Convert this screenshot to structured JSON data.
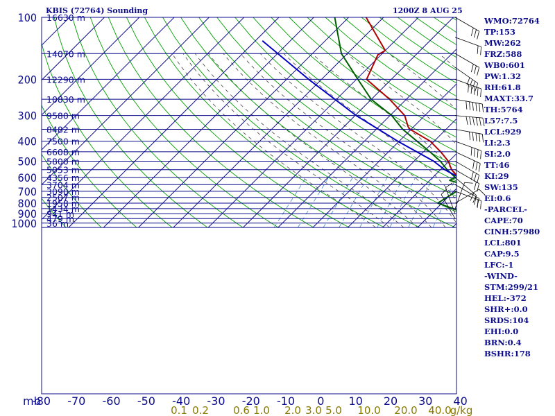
{
  "header": {
    "station": "KBIS (72764) Sounding",
    "time": "1200Z  8 AUG 25"
  },
  "indices": [
    "WMO:72764",
    "TP:153",
    "MW:262",
    "FRZ:588",
    "WB0:601",
    "PW:1.32",
    "RH:61.8",
    "MAXT:33.7",
    "TH:5764",
    "L57:7.5",
    "LCL:929",
    "LI:2.3",
    "SI:2.0",
    "TT:46",
    "KI:29",
    "SW:135",
    "EI:0.6",
    "-PARCEL-",
    "CAPE:70",
    "CINH:57980",
    "LCL:801",
    "CAP:9.5",
    "LFC:-1",
    "-WIND-",
    "STM:299/21",
    "HEL:-372",
    "SHR+:0.0",
    "SRDS:104",
    "EHI:0.0",
    "BRN:0.4",
    "BSHR:178"
  ],
  "colors": {
    "frame": "#0c0c8c",
    "temperature": "#b00000",
    "dewpoint": "#006000",
    "parcel": "#0000c0",
    "dry_adiabat": "#00a000",
    "moist_adiabat": "#404040",
    "mixing_ratio": "#3a8ad0",
    "mixing_label": "#8a7a00"
  },
  "chart_data": {
    "type": "skew-t",
    "pressure_axis_mb": [
      100,
      200,
      300,
      400,
      500,
      600,
      700,
      800,
      900,
      1000
    ],
    "pressure_range_mb": [
      100,
      1050
    ],
    "temperature_range_c": [
      -80,
      40
    ],
    "temperature_ticks": [
      "-80",
      "-70",
      "-60",
      "-50",
      "-40",
      "-30",
      "-20",
      "-10",
      "0",
      "10",
      "20",
      "30",
      "40"
    ],
    "axis_unit": "mb",
    "mixing_ratio_labels": [
      "0.1",
      "0.2",
      "0.6",
      "1.0",
      "2.0",
      "3.0",
      "5.0",
      "10.0",
      "20.0",
      "40.0"
    ],
    "mixing_unit": "g/kg",
    "height_labels": [
      {
        "p": 100,
        "label": "16630 m"
      },
      {
        "p": 150,
        "label": "14070 m"
      },
      {
        "p": 200,
        "label": "12290 m"
      },
      {
        "p": 250,
        "label": "10830 m"
      },
      {
        "p": 300,
        "label": "9580 m"
      },
      {
        "p": 350,
        "label": "8482 m"
      },
      {
        "p": 400,
        "label": "7500 m"
      },
      {
        "p": 450,
        "label": "6608 m"
      },
      {
        "p": 500,
        "label": "5800 m"
      },
      {
        "p": 550,
        "label": "5053 m"
      },
      {
        "p": 600,
        "label": "4356 m"
      },
      {
        "p": 650,
        "label": "3704 m"
      },
      {
        "p": 700,
        "label": "3090 m"
      },
      {
        "p": 750,
        "label": "2507 m"
      },
      {
        "p": 800,
        "label": "1958 m"
      },
      {
        "p": 850,
        "label": "1434 m"
      },
      {
        "p": 900,
        "label": "941 m"
      },
      {
        "p": 950,
        "label": "479 m"
      },
      {
        "p": 1000,
        "label": "36 m"
      }
    ],
    "series": [
      {
        "id": "temperature",
        "points": [
          [
            100,
            -75.0
          ],
          [
            145,
            -60.0
          ],
          [
            152,
            -60.9
          ],
          [
            200,
            -57.1
          ],
          [
            250,
            -44.8
          ],
          [
            300,
            -35.8
          ],
          [
            340,
            -31.6
          ],
          [
            350,
            -30.3
          ],
          [
            400,
            -21.1
          ],
          [
            450,
            -15.1
          ],
          [
            500,
            -10.2
          ],
          [
            550,
            -6.8
          ],
          [
            600,
            -2.7
          ],
          [
            650,
            1.5
          ],
          [
            700,
            6.0
          ],
          [
            800,
            15.3
          ],
          [
            820,
            16.8
          ],
          [
            860,
            16.3
          ],
          [
            900,
            12.9
          ],
          [
            920,
            14.1
          ],
          [
            945,
            15.5
          ]
        ]
      },
      {
        "id": "dewpoint",
        "points": [
          [
            100,
            -84.0
          ],
          [
            150,
            -71.7
          ],
          [
            200,
            -59.6
          ],
          [
            250,
            -50.1
          ],
          [
            300,
            -39.5
          ],
          [
            350,
            -32.4
          ],
          [
            400,
            -24.9
          ],
          [
            450,
            -18.2
          ],
          [
            500,
            -12.5
          ],
          [
            550,
            -8.1
          ],
          [
            600,
            -3.5
          ],
          [
            620,
            -4.3
          ],
          [
            650,
            1.1
          ],
          [
            700,
            0.8
          ],
          [
            800,
            -1.2
          ],
          [
            850,
            4.8
          ],
          [
            900,
            9.4
          ],
          [
            940,
            11.7
          ]
        ]
      },
      {
        "id": "parcel",
        "points": [
          [
            130,
            -98.0
          ],
          [
            200,
            -73.7
          ],
          [
            300,
            -49.7
          ],
          [
            400,
            -30.4
          ],
          [
            500,
            -14.4
          ],
          [
            550,
            -8.8
          ],
          [
            600,
            -2.4
          ],
          [
            700,
            5.1
          ],
          [
            800,
            11.1
          ],
          [
            900,
            16.0
          ],
          [
            945,
            20.6
          ]
        ]
      }
    ],
    "wind_barbs": "right margin, unlabeled"
  }
}
